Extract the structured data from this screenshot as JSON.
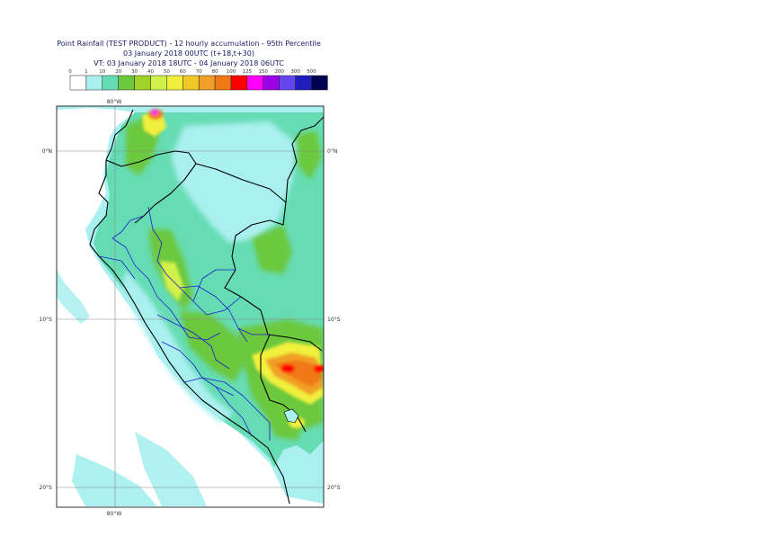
{
  "title": {
    "line1": "Point Rainfall (TEST PRODUCT) - 12 hourly accumulation - 95th Percentile",
    "line2": "03 January 2018 00UTC (t+18,t+30)",
    "line3": "VT: 03 January 2018 18UTC - 04 January 2018 06UTC"
  },
  "legend": {
    "thresholds": [
      "0",
      "1",
      "10",
      "20",
      "30",
      "40",
      "50",
      "60",
      "70",
      "80",
      "100",
      "125",
      "150",
      "200",
      "300",
      "500"
    ],
    "colors": [
      "#ffffff",
      "#aaf0f0",
      "#66dcb4",
      "#6cc83c",
      "#a0d228",
      "#d2f04a",
      "#f0f03c",
      "#f0c828",
      "#f0a028",
      "#f07814",
      "#ff0000",
      "#ff00ff",
      "#9b00e6",
      "#6446f0",
      "#1e1ebe",
      "#000050"
    ]
  },
  "map": {
    "lon_labels": {
      "top": "80°W",
      "bottom": "80°W"
    },
    "lat_labels": [
      {
        "left": "0°N",
        "right": "0°N"
      },
      {
        "left": "10°S",
        "right": "10°S"
      },
      {
        "left": "20°S",
        "right": "20°S"
      }
    ],
    "ocean_color": "#aaf0f0",
    "land_base_color": "#66dcb4"
  }
}
